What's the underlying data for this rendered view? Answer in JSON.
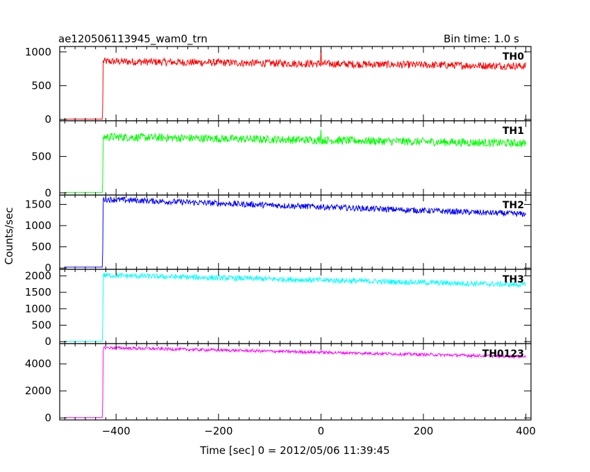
{
  "chart_data": {
    "type": "line",
    "title": "ae120506113945_wam0_trn",
    "subtitle": "Bin time: 1.0 s",
    "xlabel": "Time [sec] 0 = 2012/05/06 11:39:45",
    "ylabel": "Counts/sec",
    "xlim": [
      -510,
      410
    ],
    "xticks": [
      -400,
      -200,
      0,
      200,
      400
    ],
    "x_start": -500,
    "x_onset": -425,
    "x_end": 400,
    "spike_x": 0,
    "grid": false,
    "panels": [
      {
        "name": "TH0",
        "color": "#ff0000",
        "ylim": [
          -20,
          1080
        ],
        "yticks": [
          0,
          500,
          1000
        ],
        "pre": 5,
        "level_start": 860,
        "level_end": 790,
        "noise": 55,
        "spike": 1080
      },
      {
        "name": "TH1",
        "color": "#00ff00",
        "ylim": [
          -30,
          990
        ],
        "yticks": [
          0,
          500
        ],
        "pre": 5,
        "level_start": 770,
        "level_end": 680,
        "noise": 55,
        "spike": 870
      },
      {
        "name": "TH2",
        "color": "#0000ff",
        "ylim": [
          -30,
          1720
        ],
        "yticks": [
          0,
          500,
          1000,
          1500
        ],
        "pre": 20,
        "level_start": 1620,
        "level_end": 1270,
        "noise": 70,
        "spike": 1500
      },
      {
        "name": "TH3",
        "color": "#00ffff",
        "ylim": [
          -60,
          2200
        ],
        "yticks": [
          0,
          500,
          1000,
          1500,
          2000
        ],
        "pre": 10,
        "level_start": 2020,
        "level_end": 1730,
        "noise": 80,
        "spike": 1900
      },
      {
        "name": "TH0123",
        "color": "#ff00ff",
        "ylim": [
          -150,
          5500
        ],
        "yticks": [
          0,
          2000,
          4000
        ],
        "pre": 20,
        "level_start": 5200,
        "level_end": 4530,
        "noise": 110,
        "spike": 5000
      }
    ]
  }
}
